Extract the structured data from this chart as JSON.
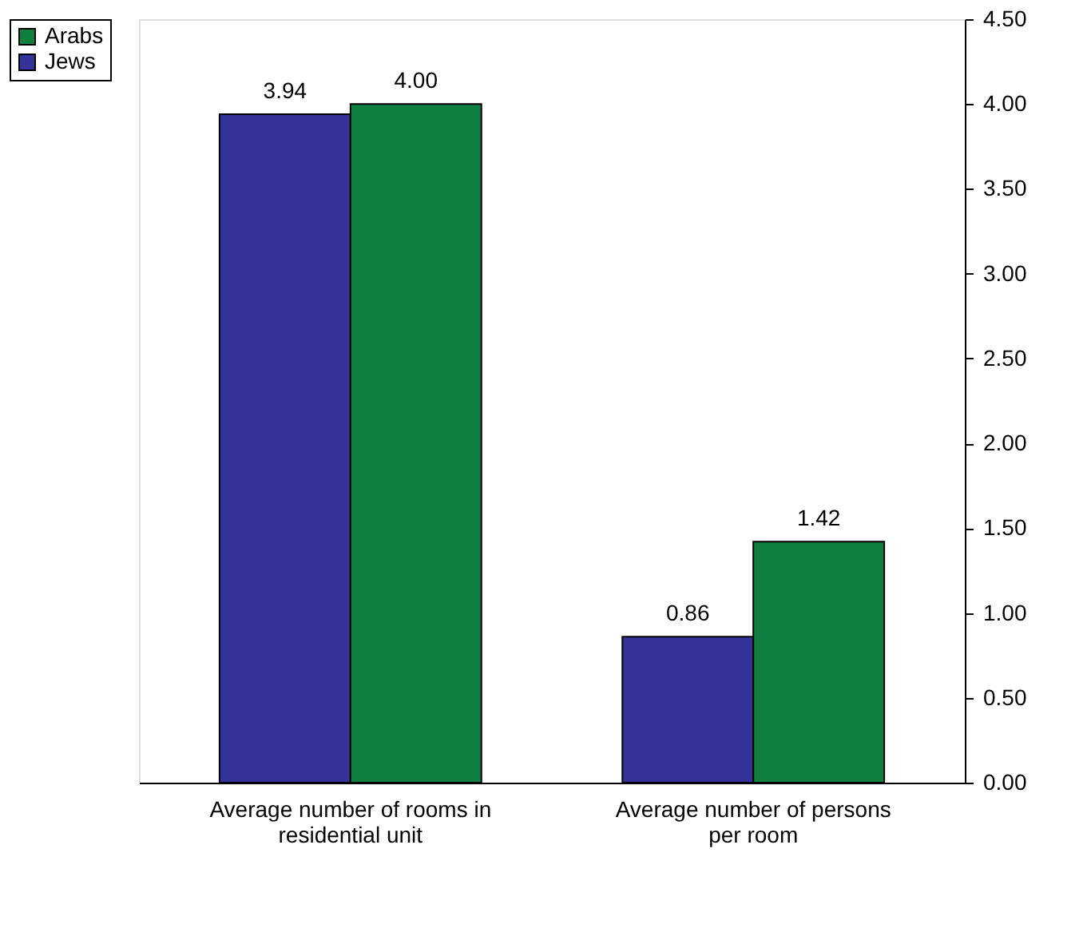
{
  "chart_data": {
    "type": "bar",
    "categories": [
      "Average number of rooms in residential unit",
      "Average number of persons per room"
    ],
    "series": [
      {
        "name": "Jews",
        "color": "#333399",
        "values": [
          3.94,
          0.86
        ],
        "value_labels": [
          "3.94",
          "0.86"
        ]
      },
      {
        "name": "Arabs",
        "color": "#108040",
        "values": [
          4.0,
          1.42
        ],
        "value_labels": [
          "4.00",
          "1.42"
        ]
      }
    ],
    "ylim": [
      0,
      4.5
    ],
    "yticks": [
      {
        "value": 0,
        "label": "0.00"
      },
      {
        "value": 0.5,
        "label": "0.50"
      },
      {
        "value": 1,
        "label": "1.00"
      },
      {
        "value": 1.5,
        "label": "1.50"
      },
      {
        "value": 2,
        "label": "2.00"
      },
      {
        "value": 2.5,
        "label": "2.50"
      },
      {
        "value": 3,
        "label": "3.00"
      },
      {
        "value": 3.5,
        "label": "3.50"
      },
      {
        "value": 4,
        "label": "4.00"
      },
      {
        "value": 4.5,
        "label": "4.50"
      }
    ],
    "legend": "left",
    "grid": false
  }
}
